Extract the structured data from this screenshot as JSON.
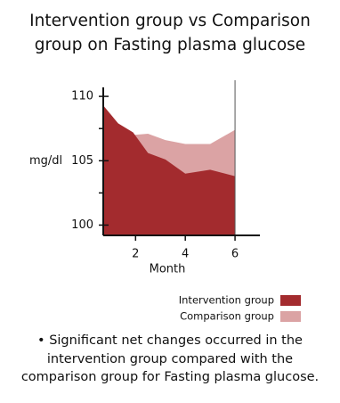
{
  "chart_data": {
    "type": "area",
    "title": "Intervention group vs Comparison group on Fasting plasma glucose",
    "x": [
      0.7,
      1.3,
      1.9,
      2.5,
      3.2,
      4,
      5,
      6
    ],
    "series": [
      {
        "name": "Intervention group",
        "color": "#a32b2e",
        "values": [
          109.3,
          107.9,
          107.2,
          105.6,
          105.1,
          104.0,
          104.3,
          103.8
        ]
      },
      {
        "name": "Comparison group",
        "color": "#dba3a4",
        "values": [
          107.8,
          107.4,
          107.0,
          107.1,
          106.6,
          106.3,
          106.3,
          107.4
        ]
      }
    ],
    "xlim": [
      0.7,
      7
    ],
    "xticks": [
      2,
      4,
      6
    ],
    "xlabel": "Month",
    "ylim": [
      99.2,
      110.7
    ],
    "yticks": [
      100,
      105,
      110
    ],
    "yminorticks": [
      102.5,
      107.5
    ],
    "ylabel": "mg/dl",
    "vline": 6,
    "legend": "bottom-right",
    "note": "Significant net changes occurred in the intervention group compared with the comparison group for Fasting plasma glucose."
  }
}
